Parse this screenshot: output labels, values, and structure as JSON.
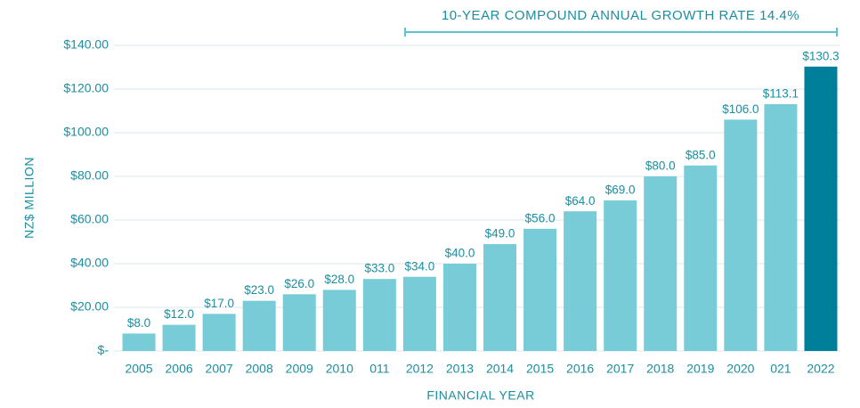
{
  "chart_data": {
    "type": "bar",
    "annotation": "10-YEAR COMPOUND ANNUAL GROWTH RATE 14.4%",
    "y_label": "NZ$ MILLION",
    "x_label": "FINANCIAL YEAR",
    "categories": [
      "2005",
      "2006",
      "2007",
      "2008",
      "2009",
      "2010",
      "011",
      "2012",
      "2013",
      "2014",
      "2015",
      "2016",
      "2017",
      "2018",
      "2019",
      "2020",
      "021",
      "2022"
    ],
    "values": [
      8,
      12,
      17,
      23,
      26,
      28,
      33,
      34,
      40,
      49,
      56,
      64,
      69,
      80,
      85,
      106,
      113.1,
      130.3
    ],
    "value_labels": [
      "$8.0",
      "$12.0",
      "$17.0",
      "$23.0",
      "$26.0",
      "$28.0",
      "$33.0",
      "$34.0",
      "$40.0",
      "$49.0",
      "$56.0",
      "$64.0",
      "$69.0",
      "$80.0",
      "$85.0",
      "$106.0",
      "$113.1",
      "$130.3"
    ],
    "colors": [
      "#78ccd7",
      "#78ccd7",
      "#78ccd7",
      "#78ccd7",
      "#78ccd7",
      "#78ccd7",
      "#78ccd7",
      "#78ccd7",
      "#78ccd7",
      "#78ccd7",
      "#78ccd7",
      "#78ccd7",
      "#78ccd7",
      "#78ccd7",
      "#78ccd7",
      "#78ccd7",
      "#78ccd7",
      "#007f9a"
    ],
    "ylim": [
      0,
      140
    ],
    "yticks": [
      {
        "value": 0,
        "label": "$-"
      },
      {
        "value": 20,
        "label": "$20.00"
      },
      {
        "value": 40,
        "label": "$40.00"
      },
      {
        "value": 60,
        "label": "$60.00"
      },
      {
        "value": 80,
        "label": "$80.00"
      },
      {
        "value": 100,
        "label": "$100.00"
      },
      {
        "value": 120,
        "label": "$120.00"
      },
      {
        "value": 140,
        "label": "$140.00"
      }
    ],
    "grid": true
  }
}
